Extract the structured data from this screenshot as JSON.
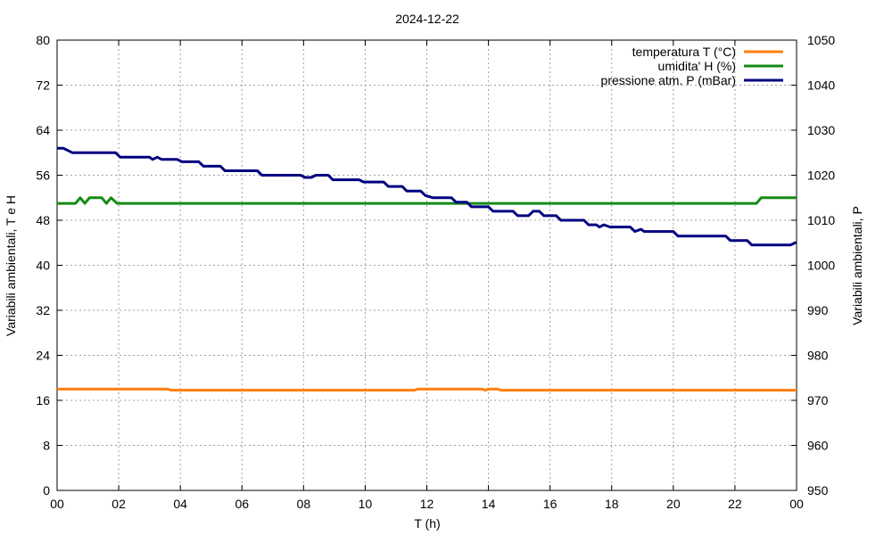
{
  "chart_data": {
    "type": "line",
    "title": "2024-12-22",
    "xlabel": "T (h)",
    "ylabel": "Variabili ambientali, T e H",
    "y2label": "Variabili ambientali, P",
    "xlim": [
      0,
      24
    ],
    "ylim": [
      0,
      80
    ],
    "y2lim": [
      950,
      1050
    ],
    "grid": true,
    "legend_position": "top-right",
    "x_ticks": [
      "00",
      "02",
      "04",
      "06",
      "08",
      "10",
      "12",
      "14",
      "16",
      "18",
      "20",
      "22",
      "00"
    ],
    "y_ticks": [
      "0",
      "8",
      "16",
      "24",
      "32",
      "40",
      "48",
      "56",
      "64",
      "72",
      "80"
    ],
    "y2_ticks": [
      "950",
      "960",
      "970",
      "980",
      "990",
      "1000",
      "1010",
      "1020",
      "1030",
      "1040",
      "1050"
    ],
    "series": [
      {
        "name": "temperatura T (°C)",
        "axis": "y",
        "color": "#ff7f0e",
        "points": [
          [
            0,
            18.0
          ],
          [
            3.6,
            18.0
          ],
          [
            3.7,
            17.8
          ],
          [
            11.6,
            17.8
          ],
          [
            11.7,
            18.0
          ],
          [
            13.8,
            18.0
          ],
          [
            13.9,
            17.8
          ],
          [
            14.0,
            18.0
          ],
          [
            14.3,
            18.0
          ],
          [
            14.4,
            17.8
          ],
          [
            24,
            17.8
          ]
        ]
      },
      {
        "name": "umidita' H (%)",
        "axis": "y",
        "color": "#148c14",
        "points": [
          [
            0,
            51
          ],
          [
            0.6,
            51
          ],
          [
            0.75,
            52
          ],
          [
            0.9,
            51
          ],
          [
            1.05,
            52
          ],
          [
            1.45,
            52
          ],
          [
            1.6,
            51
          ],
          [
            1.75,
            52
          ],
          [
            1.95,
            51
          ],
          [
            22.7,
            51
          ],
          [
            22.85,
            52
          ],
          [
            24,
            52
          ]
        ]
      },
      {
        "name": "pressione atm. P (mBar)",
        "axis": "y2",
        "color": "#000080",
        "points": [
          [
            0,
            1026
          ],
          [
            0.2,
            1026
          ],
          [
            0.5,
            1025
          ],
          [
            1.9,
            1025
          ],
          [
            2.05,
            1024
          ],
          [
            3.0,
            1024
          ],
          [
            3.1,
            1023.5
          ],
          [
            3.25,
            1024
          ],
          [
            3.4,
            1023.5
          ],
          [
            3.9,
            1023.5
          ],
          [
            4.05,
            1023
          ],
          [
            4.6,
            1023
          ],
          [
            4.75,
            1022
          ],
          [
            5.3,
            1022
          ],
          [
            5.45,
            1021
          ],
          [
            6.5,
            1021
          ],
          [
            6.65,
            1020
          ],
          [
            7.9,
            1020
          ],
          [
            8.05,
            1019.5
          ],
          [
            8.25,
            1019.5
          ],
          [
            8.4,
            1020
          ],
          [
            8.8,
            1020
          ],
          [
            8.95,
            1019
          ],
          [
            9.8,
            1019
          ],
          [
            9.95,
            1018.5
          ],
          [
            10.6,
            1018.5
          ],
          [
            10.75,
            1017.5
          ],
          [
            11.2,
            1017.5
          ],
          [
            11.35,
            1016.5
          ],
          [
            11.8,
            1016.5
          ],
          [
            11.95,
            1015.5
          ],
          [
            12.2,
            1015
          ],
          [
            12.8,
            1015
          ],
          [
            12.95,
            1014
          ],
          [
            13.3,
            1014
          ],
          [
            13.45,
            1013
          ],
          [
            14.0,
            1013
          ],
          [
            14.15,
            1012
          ],
          [
            14.8,
            1012
          ],
          [
            14.95,
            1011
          ],
          [
            15.3,
            1011
          ],
          [
            15.45,
            1012
          ],
          [
            15.65,
            1012
          ],
          [
            15.8,
            1011
          ],
          [
            16.2,
            1011
          ],
          [
            16.35,
            1010
          ],
          [
            17.1,
            1010
          ],
          [
            17.25,
            1009
          ],
          [
            17.5,
            1009
          ],
          [
            17.6,
            1008.5
          ],
          [
            17.75,
            1009
          ],
          [
            17.95,
            1008.5
          ],
          [
            18.6,
            1008.5
          ],
          [
            18.75,
            1007.5
          ],
          [
            18.95,
            1008
          ],
          [
            19.05,
            1007.5
          ],
          [
            20.0,
            1007.5
          ],
          [
            20.15,
            1006.5
          ],
          [
            21.7,
            1006.5
          ],
          [
            21.85,
            1005.5
          ],
          [
            22.4,
            1005.5
          ],
          [
            22.55,
            1004.5
          ],
          [
            23.8,
            1004.5
          ],
          [
            23.95,
            1005
          ],
          [
            24,
            1005
          ]
        ]
      }
    ]
  }
}
